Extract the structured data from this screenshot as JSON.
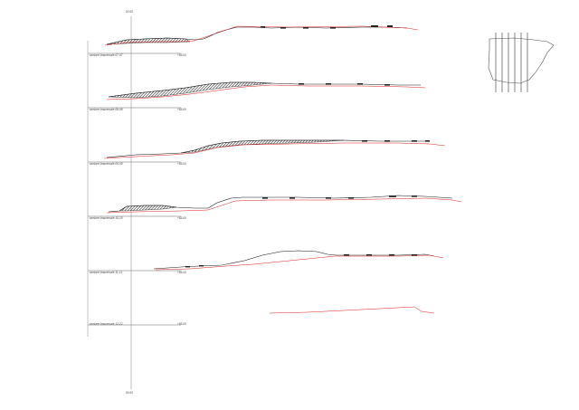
{
  "axis": {
    "top_label": "00 00",
    "bottom_label": "00 00"
  },
  "sections": [
    {
      "label": "sezione trasversale 07-07",
      "elevation": "+83.00"
    },
    {
      "label": "sezione trasversale 08-08",
      "elevation": "+83.00"
    },
    {
      "label": "sezione trasversale 09-09",
      "elevation": "+83.00"
    },
    {
      "label": "sezione trasversale 10-10",
      "elevation": "+83.00"
    },
    {
      "label": "sezione trasversale 11-11",
      "elevation": "+83.00"
    },
    {
      "label": "sezione trasversale 12-12",
      "elevation": "+83.00"
    }
  ],
  "colors": {
    "ground_line": "#1a1a1a",
    "design_line": "#e02020",
    "hatch": "#222222",
    "frame": "#555555"
  }
}
